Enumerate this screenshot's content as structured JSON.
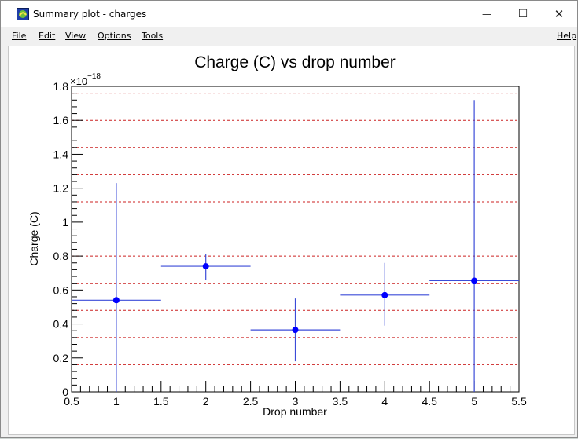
{
  "window": {
    "title": "Summary plot - charges",
    "minimize_glyph": "—",
    "maximize_glyph": "☐",
    "close_glyph": "✕"
  },
  "menu": {
    "file": "File",
    "edit": "Edit",
    "view": "View",
    "options": "Options",
    "tools": "Tools",
    "help": "Help"
  },
  "colors": {
    "marker": "#0000ff",
    "errorbar": "#3b4bd8",
    "reference_lines": "#cc2222"
  },
  "chart_data": {
    "type": "scatter",
    "title": "Charge (C) vs drop number",
    "xlabel": "Drop number",
    "ylabel": "Charge (C)",
    "y_exponent_label": "×10",
    "y_exponent_power": "−18",
    "xlim": [
      0.5,
      5.5
    ],
    "ylim": [
      0,
      1.8
    ],
    "x_ticks": [
      "0.5",
      "1",
      "1.5",
      "2",
      "2.5",
      "3",
      "3.5",
      "4",
      "4.5",
      "5",
      "5.5"
    ],
    "y_ticks": [
      "0",
      "0.2",
      "0.4",
      "0.6",
      "0.8",
      "1",
      "1.2",
      "1.4",
      "1.6",
      "1.8"
    ],
    "points": [
      {
        "x": 1,
        "y": 0.54,
        "xerr": 0.5,
        "ylow": 0.0,
        "yhigh": 1.23
      },
      {
        "x": 2,
        "y": 0.74,
        "xerr": 0.5,
        "ylow": 0.66,
        "yhigh": 0.81
      },
      {
        "x": 3,
        "y": 0.365,
        "xerr": 0.5,
        "ylow": 0.18,
        "yhigh": 0.55
      },
      {
        "x": 4,
        "y": 0.57,
        "xerr": 0.5,
        "ylow": 0.39,
        "yhigh": 0.76
      },
      {
        "x": 5,
        "y": 0.655,
        "xerr": 0.5,
        "ylow": 0.0,
        "yhigh": 1.72
      }
    ],
    "reference_lines_y": [
      0.16,
      0.32,
      0.48,
      0.64,
      0.8,
      0.96,
      1.12,
      1.28,
      1.44,
      1.6,
      1.76
    ],
    "grid": false
  }
}
